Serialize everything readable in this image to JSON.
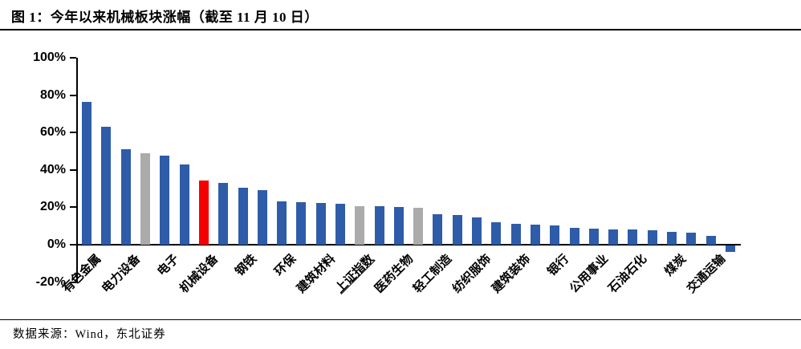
{
  "chart_data": {
    "type": "bar",
    "title": "图 1：今年以来机械板块涨幅（截至 11 月 10 日）",
    "source": "数据来源：Wind，东北证券",
    "xlabel": "",
    "ylabel": "",
    "ylim": [
      -20,
      100
    ],
    "grid": false,
    "legend": "none",
    "ytick_values": [
      100,
      80,
      60,
      40,
      20,
      0,
      -20
    ],
    "ytick_labels": [
      "100%",
      "80%",
      "60%",
      "40%",
      "20%",
      "0%",
      "-20%"
    ],
    "palette": {
      "default": "#2E5CA8",
      "highlight": "#F40000",
      "index": "#ABABAB"
    },
    "bars": [
      {
        "label": "有色金属",
        "value": 76.5,
        "color": "default"
      },
      {
        "label": "",
        "value": 63.0,
        "color": "default"
      },
      {
        "label": "电力设备",
        "value": 51.0,
        "color": "default"
      },
      {
        "label": "",
        "value": 48.8,
        "color": "index"
      },
      {
        "label": "电子",
        "value": 47.5,
        "color": "default"
      },
      {
        "label": "",
        "value": 43.0,
        "color": "default"
      },
      {
        "label": "机械设备",
        "value": 34.3,
        "color": "highlight"
      },
      {
        "label": "",
        "value": 33.2,
        "color": "default"
      },
      {
        "label": "钢铁",
        "value": 30.5,
        "color": "default"
      },
      {
        "label": "",
        "value": 29.0,
        "color": "default"
      },
      {
        "label": "环保",
        "value": 23.0,
        "color": "default"
      },
      {
        "label": "",
        "value": 22.7,
        "color": "default"
      },
      {
        "label": "建筑材料",
        "value": 22.4,
        "color": "default"
      },
      {
        "label": "",
        "value": 22.0,
        "color": "default"
      },
      {
        "label": "上证指数",
        "value": 20.7,
        "color": "index",
        "underline": true
      },
      {
        "label": "",
        "value": 20.4,
        "color": "default"
      },
      {
        "label": "医药生物",
        "value": 20.1,
        "color": "default"
      },
      {
        "label": "",
        "value": 19.8,
        "color": "index"
      },
      {
        "label": "轻工制造",
        "value": 16.5,
        "color": "default"
      },
      {
        "label": "",
        "value": 15.9,
        "color": "default"
      },
      {
        "label": "纺织服饰",
        "value": 14.5,
        "color": "default"
      },
      {
        "label": "",
        "value": 11.9,
        "color": "default"
      },
      {
        "label": "建筑装饰",
        "value": 11.3,
        "color": "default"
      },
      {
        "label": "",
        "value": 10.7,
        "color": "default"
      },
      {
        "label": "银行",
        "value": 10.1,
        "color": "default"
      },
      {
        "label": "",
        "value": 9.2,
        "color": "default"
      },
      {
        "label": "公用事业",
        "value": 8.7,
        "color": "default"
      },
      {
        "label": "",
        "value": 8.3,
        "color": "default"
      },
      {
        "label": "石油石化",
        "value": 8.1,
        "color": "default"
      },
      {
        "label": "",
        "value": 7.6,
        "color": "default"
      },
      {
        "label": "煤炭",
        "value": 7.0,
        "color": "default"
      },
      {
        "label": "",
        "value": 6.6,
        "color": "default"
      },
      {
        "label": "交通运输",
        "value": 4.8,
        "color": "default"
      },
      {
        "label": "",
        "value": -3.4,
        "color": "default"
      }
    ]
  }
}
